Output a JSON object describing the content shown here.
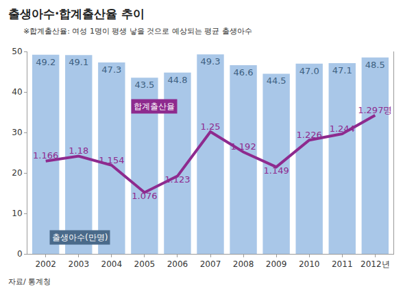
{
  "chart_data": {
    "type": "bar",
    "title": "출생아수·합계출산율 추이",
    "subtitle": "※합계출산율: 여성 1명이 평생 낳을 것으로 예상되는 평균 출생아수",
    "source": "자료/ 통계청",
    "categories": [
      "2002",
      "2003",
      "2004",
      "2005",
      "2006",
      "2007",
      "2008",
      "2009",
      "2010",
      "2011",
      "2012년"
    ],
    "series": [
      {
        "name": "출생아수(만명)",
        "type": "bar",
        "color": "#a9c7e8",
        "values": [
          49.2,
          49.1,
          47.3,
          43.5,
          44.8,
          49.3,
          46.6,
          44.5,
          47.0,
          47.1,
          48.5
        ],
        "value_labels": [
          "49.2",
          "49.1",
          "47.3",
          "43.5",
          "44.8",
          "49.3",
          "46.6",
          "44.5",
          "47.0",
          "47.1",
          "48.5"
        ],
        "data_labels": true
      },
      {
        "name": "합계출산율",
        "type": "line",
        "axis": "y2",
        "color": "#8e2a8e",
        "marker": "none",
        "values": [
          1.166,
          1.18,
          1.154,
          1.076,
          1.123,
          1.25,
          1.192,
          1.149,
          1.226,
          1.244,
          1.297
        ],
        "value_labels": [
          "1.166",
          "1.18",
          "1.154",
          "1.076",
          "1.123",
          "1.25",
          "1.192",
          "1.149",
          "1.226",
          "1.244",
          "1.297명"
        ],
        "data_labels": true
      }
    ],
    "ylim": [
      0,
      50
    ],
    "yticks": [
      0,
      10,
      20,
      30,
      40,
      50
    ],
    "y2lim": [
      0.9,
      1.48
    ],
    "y2ticks": [],
    "grid": false
  }
}
